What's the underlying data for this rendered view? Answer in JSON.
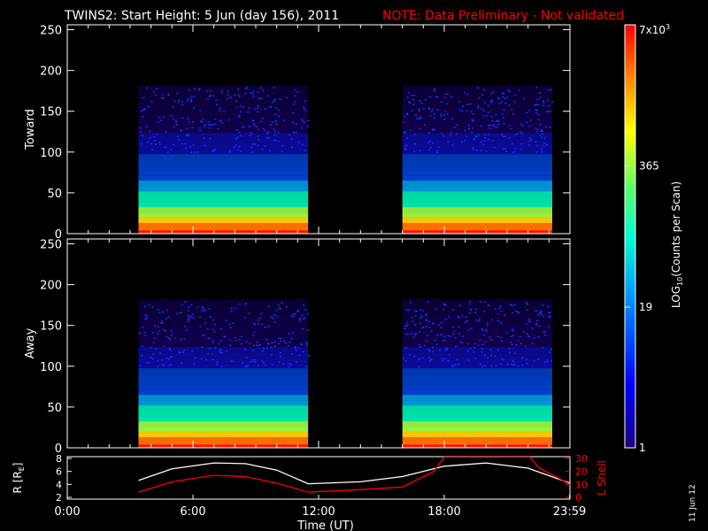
{
  "header": {
    "title": "TWINS2: Start Height:  5 Jun (day 156), 2011",
    "note": "NOTE: Data Preliminary - Not validated"
  },
  "stamp": "11 Jun 12",
  "colorbar": {
    "label_html": "LOG10(Counts per Scan)",
    "label_main": "LOG",
    "label_sub": "10",
    "label_rest": "(Counts per Scan)",
    "ticks": [
      {
        "label": "7x10",
        "sup": "3",
        "value": 7000
      },
      {
        "label": "365",
        "sup": "",
        "value": 365
      },
      {
        "label": "19",
        "sup": "",
        "value": 19
      },
      {
        "label": "1",
        "sup": "",
        "value": 1
      }
    ]
  },
  "panels": [
    {
      "id": "toward",
      "ylabel": "Toward"
    },
    {
      "id": "away",
      "ylabel": "Away"
    }
  ],
  "orbit_panel": {
    "ylabel_left_main": "R [R",
    "ylabel_left_sub": "E",
    "ylabel_left_end": "]",
    "ylabel_right": "L Shell",
    "left_ticks": [
      "8",
      "6",
      "4",
      "2"
    ],
    "right_ticks": [
      "30",
      "20",
      "10",
      "0"
    ]
  },
  "colors": {
    "background": "#000000",
    "note": "#ff0000",
    "axis": "#ffffff",
    "lshell": "#ff0000",
    "radius": "#ffffff"
  },
  "chart_data": {
    "type": "heatmap",
    "title": "TWINS2: Start Height:  5 Jun (day 156), 2011",
    "xlabel": "Time (UT)",
    "x_tick_labels": [
      "0:00",
      "6:00",
      "12:00",
      "18:00",
      "23:59"
    ],
    "x_tick_hours": [
      0,
      6,
      12,
      18,
      23.983
    ],
    "xlim_hours": [
      0,
      24
    ],
    "ylim": [
      0,
      256
    ],
    "y_ticks": [
      0,
      50,
      100,
      150,
      200,
      250
    ],
    "color_scale": "log",
    "color_range": [
      1,
      7000
    ],
    "data_intervals_hours": [
      [
        3.4,
        11.5
      ],
      [
        16.0,
        24.0
      ]
    ],
    "panels": [
      "Toward",
      "Away"
    ],
    "series": [
      {
        "name": "R [RE]",
        "axis": "left",
        "x": [
          3.4,
          5,
          7,
          8.5,
          10,
          11.5,
          14,
          16,
          18,
          20,
          22,
          24
        ],
        "y": [
          4.6,
          6.4,
          7.3,
          7.2,
          6.2,
          4.1,
          4.4,
          5.2,
          6.8,
          7.3,
          6.5,
          4.2
        ]
      },
      {
        "name": "L Shell",
        "axis": "right",
        "x": [
          3.4,
          5,
          7,
          8.5,
          10,
          11.5,
          14,
          16,
          17.5,
          18.0,
          22.1,
          22.5,
          24
        ],
        "y": [
          4,
          12,
          17,
          16,
          11,
          4,
          6,
          8,
          20,
          31,
          31,
          23,
          10
        ]
      }
    ],
    "orbit_ylim_left": [
      2,
      8
    ],
    "orbit_ylim_right": [
      0,
      30
    ]
  }
}
